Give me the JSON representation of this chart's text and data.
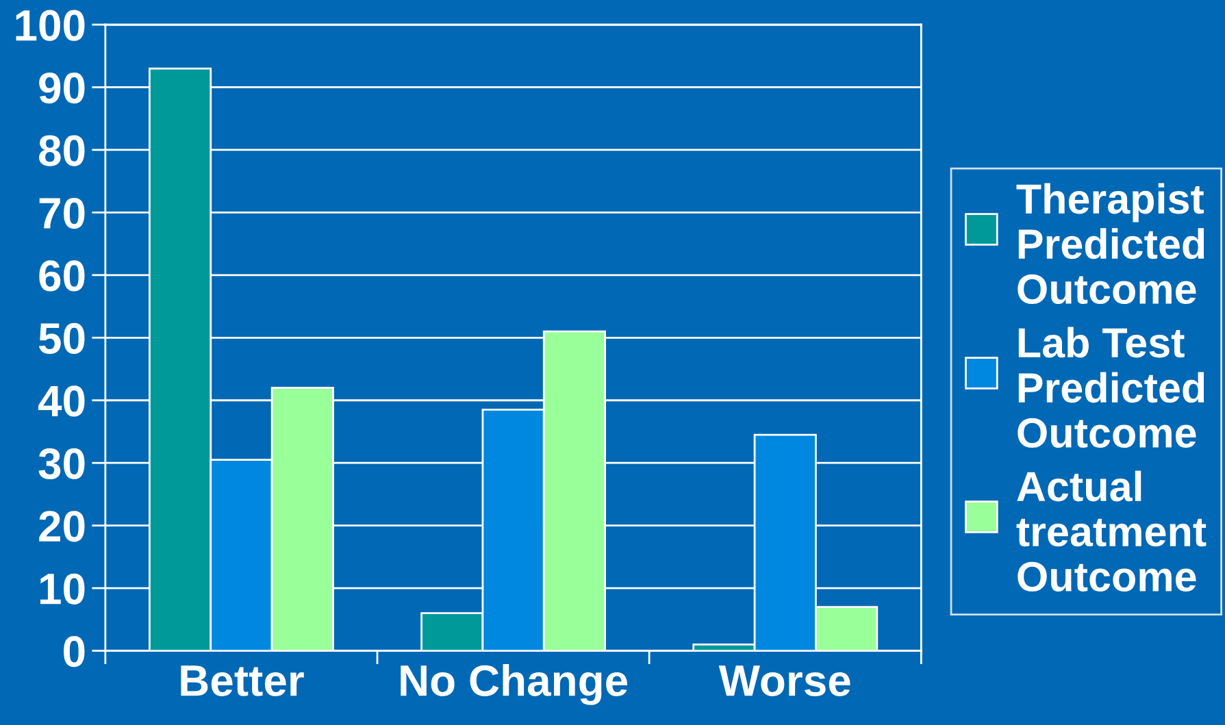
{
  "chart_data": {
    "type": "bar",
    "categories": [
      "Better",
      "No Change",
      "Worse"
    ],
    "series": [
      {
        "name": "Therapist\nPredicted\nOutcome",
        "color": "#009999",
        "values": [
          93,
          6,
          1
        ]
      },
      {
        "name": "Lab Test\nPredicted\nOutcome",
        "color": "#0088e0",
        "values": [
          30.5,
          38.5,
          34.5
        ]
      },
      {
        "name": "Actual\ntreatment\nOutcome",
        "color": "#99ff99",
        "values": [
          42,
          51,
          7
        ]
      }
    ],
    "ylim": [
      0,
      100
    ],
    "yticks": [
      0,
      10,
      20,
      30,
      40,
      50,
      60,
      70,
      80,
      90,
      100
    ],
    "grid": "y",
    "legend": "right"
  }
}
